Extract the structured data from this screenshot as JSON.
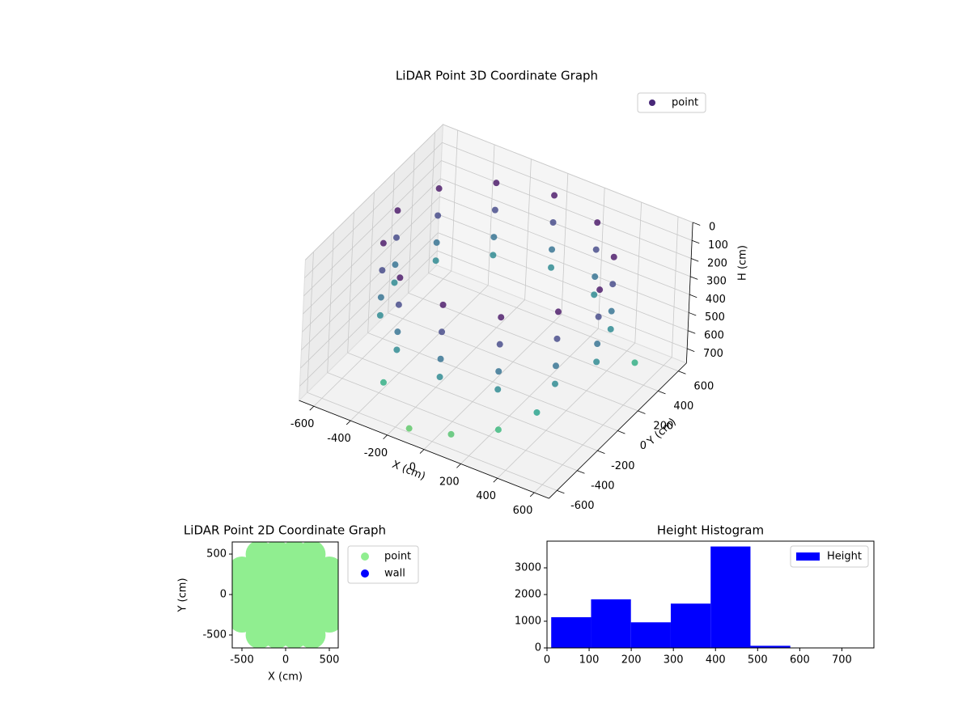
{
  "chart_data": [
    {
      "type": "scatter3d",
      "title": "LiDAR Point 3D Coordinate Graph",
      "xlabel": "X (cm)",
      "ylabel": "Y (cm)",
      "zlabel": "H (cm)",
      "colormap": "viridis",
      "xlim": [
        -680,
        680
      ],
      "ylim": [
        -680,
        680
      ],
      "zlim": [
        0,
        780
      ],
      "z_inverted": true,
      "xticks": [
        -600,
        -400,
        -200,
        0,
        200,
        400,
        600
      ],
      "yticks": [
        -600,
        -400,
        -200,
        0,
        200,
        400,
        600
      ],
      "zticks": [
        0,
        100,
        200,
        300,
        400,
        500,
        600,
        700
      ],
      "legend": "upper right",
      "series": [
        {
          "name": "point",
          "color": "#482878",
          "x": [
            550,
            476,
            275,
            0,
            -275,
            -476,
            -550,
            -476,
            -275,
            0,
            275,
            476,
            550,
            476,
            275,
            0,
            -275,
            -476,
            -550,
            -476,
            -275,
            0,
            275,
            476,
            550,
            476,
            275,
            0,
            -275,
            -476,
            -550,
            -476,
            -275,
            0,
            275,
            476,
            550,
            476,
            275,
            0,
            -275,
            -476,
            -550,
            -476,
            -275,
            0,
            275,
            476,
            100,
            300,
            -100,
            600,
            -300,
            450
          ],
          "y": [
            0,
            275,
            476,
            550,
            476,
            275,
            0,
            -275,
            -476,
            -550,
            -476,
            -275,
            0,
            275,
            476,
            550,
            476,
            275,
            0,
            -275,
            -476,
            -550,
            -476,
            -275,
            0,
            275,
            476,
            550,
            476,
            275,
            0,
            -275,
            -476,
            -550,
            -476,
            -275,
            0,
            275,
            476,
            550,
            476,
            275,
            0,
            -275,
            -476,
            -550,
            -476,
            -275,
            -600,
            -500,
            -650,
            300,
            -550,
            -400
          ],
          "z": [
            50,
            50,
            50,
            50,
            50,
            50,
            50,
            50,
            50,
            50,
            50,
            50,
            200,
            200,
            200,
            200,
            200,
            200,
            200,
            200,
            200,
            200,
            200,
            200,
            350,
            350,
            350,
            350,
            350,
            350,
            350,
            350,
            350,
            350,
            350,
            350,
            450,
            450,
            450,
            450,
            450,
            450,
            450,
            450,
            450,
            450,
            450,
            450,
            700,
            650,
            720,
            600,
            600,
            550
          ]
        }
      ]
    },
    {
      "type": "scatter",
      "title": "LiDAR Point 2D Coordinate Graph",
      "xlabel": "X (cm)",
      "ylabel": "Y (cm)",
      "xlim": [
        -611,
        602
      ],
      "ylim": [
        -660,
        650
      ],
      "xticks": [
        -500,
        0,
        500
      ],
      "yticks": [
        -500,
        0,
        500
      ],
      "legend": "outside right",
      "series": [
        {
          "name": "point",
          "color": "#90ee90",
          "x": [
            -500,
            -500,
            -500,
            -500,
            -300,
            -300,
            -300,
            -300,
            -300,
            -300,
            -100,
            -100,
            -100,
            -100,
            -100,
            -100,
            100,
            100,
            100,
            100,
            100,
            100,
            300,
            300,
            300,
            300,
            300,
            300,
            500,
            500,
            500,
            500
          ],
          "y": [
            -300,
            -100,
            100,
            300,
            -500,
            -300,
            -100,
            100,
            300,
            500,
            -500,
            -300,
            -100,
            100,
            300,
            500,
            -500,
            -300,
            -100,
            100,
            300,
            500,
            -500,
            -300,
            -100,
            100,
            300,
            500,
            -300,
            -100,
            100,
            300
          ]
        },
        {
          "name": "wall",
          "color": "#0000ff",
          "x": [],
          "y": []
        }
      ]
    },
    {
      "type": "histogram",
      "title": "Height Histogram",
      "bins": [
        10,
        104.6,
        199.2,
        293.8,
        388.4,
        483,
        577.6,
        672.2,
        766.8
      ],
      "counts": [
        1150,
        1820,
        960,
        1660,
        3800,
        80,
        10,
        5
      ],
      "series_name": "Height",
      "color": "#0000ff",
      "xlim": [
        0,
        776
      ],
      "ylim": [
        0,
        4000
      ],
      "xticks": [
        0,
        100,
        200,
        300,
        400,
        500,
        600,
        700
      ],
      "yticks": [
        0,
        1000,
        2000,
        3000
      ],
      "legend": "upper right"
    }
  ]
}
